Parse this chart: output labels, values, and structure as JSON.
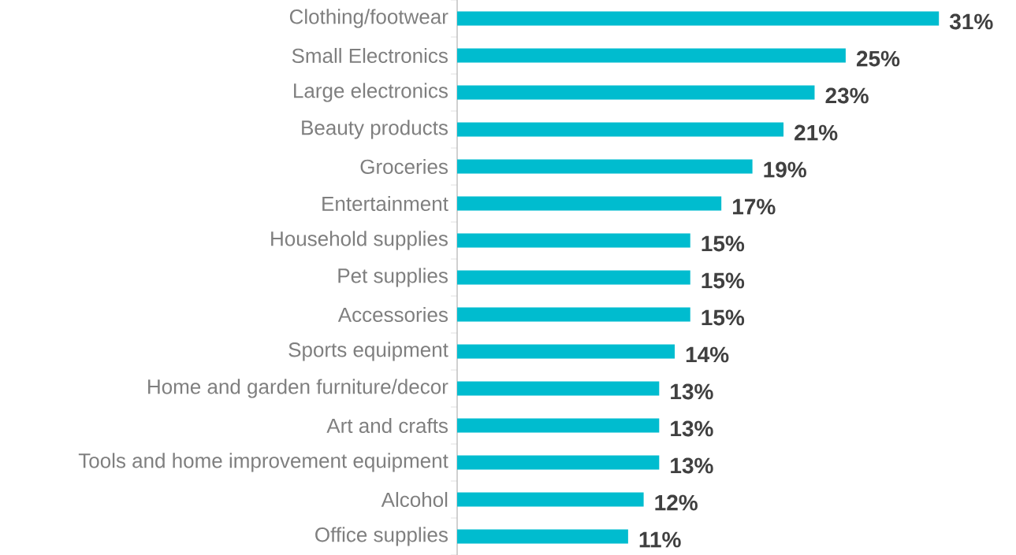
{
  "chart_data": {
    "type": "bar",
    "orientation": "horizontal",
    "categories": [
      "Clothing/footwear",
      "Small Electronics",
      "Large electronics",
      "Beauty products",
      "Groceries",
      "Entertainment",
      "Household supplies",
      "Pet supplies",
      "Accessories",
      "Sports equipment",
      "Home and garden furniture/decor",
      "Art and crafts",
      "Tools and home improvement equipment",
      "Alcohol",
      "Office supplies"
    ],
    "values": [
      31,
      25,
      23,
      21,
      19,
      17,
      15,
      15,
      15,
      14,
      13,
      13,
      13,
      12,
      11
    ],
    "value_labels": [
      "31%",
      "25%",
      "23%",
      "21%",
      "19%",
      "17%",
      "15%",
      "15%",
      "15%",
      "14%",
      "13%",
      "13%",
      "13%",
      "12%",
      "11%"
    ],
    "color": "#00bccf"
  }
}
